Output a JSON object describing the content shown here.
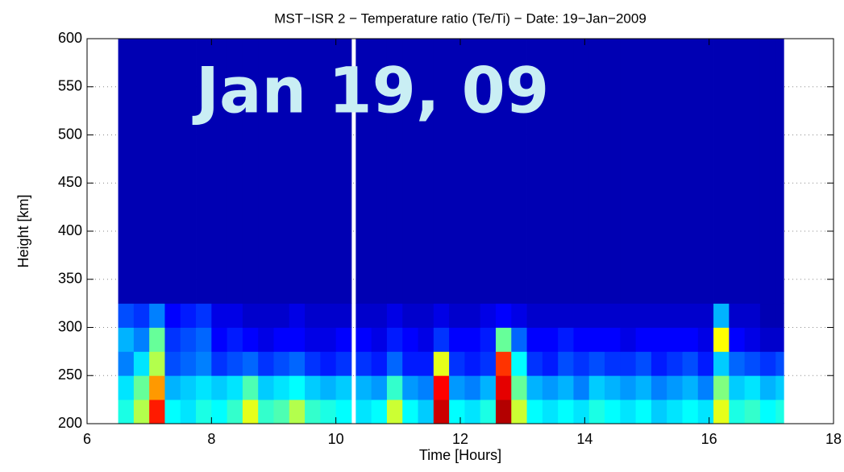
{
  "chart_data": {
    "type": "heatmap",
    "title": "MST−ISR 2 − Temperature ratio (Te/Ti) − Date: 19−Jan−2009",
    "x_label": "Time [Hours]",
    "y_label": "Height [km]",
    "annotation": "Jan 19, 09",
    "xlim": [
      6,
      18
    ],
    "xticks": [
      6,
      8,
      10,
      12,
      14,
      16,
      18
    ],
    "ylim": [
      200,
      600
    ],
    "yticks": [
      200,
      250,
      300,
      350,
      400,
      450,
      500,
      550,
      600
    ],
    "grid": true,
    "colormap": "jet",
    "clim": [
      0,
      4
    ],
    "xbins": [
      6.5,
      6.75,
      7,
      7.25,
      7.5,
      7.75,
      8,
      8.25,
      8.5,
      8.75,
      9,
      9.25,
      9.5,
      9.75,
      10,
      10.25,
      10.32,
      10.57,
      10.82,
      11.07,
      11.32,
      11.57,
      11.82,
      12.07,
      12.32,
      12.57,
      12.82,
      13.07,
      13.32,
      13.57,
      13.82,
      14.07,
      14.32,
      14.57,
      14.82,
      15.07,
      15.32,
      15.57,
      15.82,
      16.07,
      16.32,
      16.57,
      16.82,
      17.07,
      17.2
    ],
    "ybins": [
      200,
      225,
      250,
      275,
      300,
      325,
      600
    ],
    "z": [
      [
        1.6,
        2.2,
        3.4,
        1.5,
        1.4,
        1.6,
        1.5,
        1.7,
        2.4,
        1.7,
        1.8,
        2.2,
        1.7,
        1.6,
        1.5,
        null,
        1.4,
        1.5,
        2.3,
        1.5,
        1.3,
        3.7,
        1.5,
        1.4,
        1.6,
        3.8,
        2.3,
        1.5,
        1.4,
        1.5,
        1.4,
        1.6,
        1.5,
        1.4,
        1.5,
        1.3,
        1.4,
        1.5,
        1.4,
        2.4,
        1.6,
        1.7,
        1.5,
        1.6
      ],
      [
        1.4,
        1.9,
        2.9,
        1.2,
        1.3,
        1.4,
        1.3,
        1.4,
        1.8,
        1.3,
        1.4,
        1.5,
        1.3,
        1.2,
        1.3,
        null,
        1.2,
        1.1,
        1.7,
        1.1,
        1.0,
        3.5,
        1.1,
        1.0,
        1.2,
        3.6,
        1.9,
        1.2,
        1.1,
        1.2,
        1.0,
        1.3,
        1.2,
        1.1,
        1.2,
        1.0,
        1.1,
        1.2,
        1.0,
        2.0,
        1.3,
        1.4,
        1.2,
        1.3
      ],
      [
        1.0,
        1.4,
        2.2,
        0.8,
        0.9,
        1.0,
        0.7,
        0.8,
        0.9,
        0.7,
        0.8,
        0.9,
        0.7,
        0.6,
        0.7,
        null,
        0.7,
        0.6,
        0.9,
        0.6,
        0.6,
        2.4,
        0.7,
        0.6,
        0.7,
        3.3,
        1.5,
        0.7,
        0.6,
        0.8,
        0.7,
        0.8,
        0.7,
        0.7,
        0.8,
        0.6,
        0.7,
        0.8,
        0.6,
        1.3,
        0.9,
        0.8,
        0.7,
        0.8
      ],
      [
        1.2,
        1.0,
        1.9,
        0.7,
        0.8,
        0.9,
        0.5,
        0.6,
        0.5,
        0.4,
        0.5,
        0.5,
        0.4,
        0.4,
        0.5,
        null,
        0.5,
        0.4,
        0.6,
        0.5,
        0.4,
        0.7,
        0.5,
        0.5,
        0.6,
        1.9,
        0.9,
        0.5,
        0.5,
        0.6,
        0.5,
        0.5,
        0.5,
        0.4,
        0.5,
        0.5,
        0.5,
        0.5,
        0.4,
        2.5,
        0.5,
        0.4,
        0.3,
        0.3
      ],
      [
        0.8,
        0.7,
        1.0,
        0.5,
        0.6,
        0.7,
        0.4,
        0.4,
        0.3,
        0.3,
        0.3,
        0.4,
        0.3,
        0.3,
        0.3,
        null,
        0.3,
        0.3,
        0.4,
        0.3,
        0.3,
        0.4,
        0.3,
        0.3,
        0.4,
        0.5,
        0.4,
        0.3,
        0.3,
        0.3,
        0.3,
        0.3,
        0.3,
        0.3,
        0.3,
        0.3,
        0.3,
        0.3,
        0.3,
        1.2,
        0.3,
        0.3,
        0.2,
        0.2
      ],
      [
        0.2,
        0.2,
        0.2,
        0.2,
        0.2,
        0.2,
        0.2,
        0.2,
        0.2,
        0.2,
        0.2,
        0.2,
        0.2,
        0.2,
        0.2,
        null,
        0.2,
        0.2,
        0.2,
        0.2,
        0.2,
        0.2,
        0.2,
        0.2,
        0.2,
        0.2,
        0.2,
        0.2,
        0.2,
        0.2,
        0.2,
        0.2,
        0.2,
        0.2,
        0.2,
        0.2,
        0.2,
        0.2,
        0.2,
        0.2,
        0.2,
        0.2,
        0.2,
        0.2
      ]
    ]
  }
}
